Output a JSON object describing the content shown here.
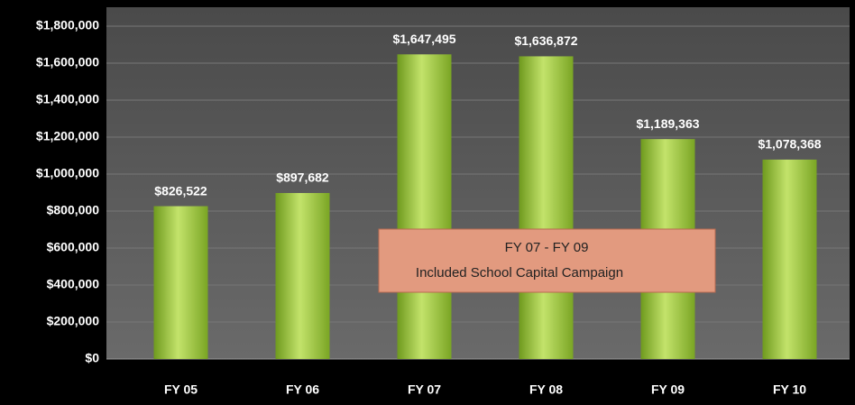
{
  "chart_data": {
    "type": "bar",
    "categories": [
      "FY 05",
      "FY 06",
      "FY 07",
      "FY 08",
      "FY 09",
      "FY 10"
    ],
    "values": [
      826522,
      897682,
      1647495,
      1636872,
      1189363,
      1078368
    ],
    "value_labels": [
      "$826,522",
      "$897,682",
      "$1,647,495",
      "$1,636,872",
      "$1,189,363",
      "$1,078,368"
    ],
    "color": "#9ccc3c",
    "ylim": [
      0,
      1800000
    ],
    "yticks": [
      {
        "value": 0,
        "label": "$0"
      },
      {
        "value": 200000,
        "label": "$200,000"
      },
      {
        "value": 400000,
        "label": "$400,000"
      },
      {
        "value": 600000,
        "label": "$600,000"
      },
      {
        "value": 800000,
        "label": "$800,000"
      },
      {
        "value": 1000000,
        "label": "$1,000,000"
      },
      {
        "value": 1200000,
        "label": "$1,200,000"
      },
      {
        "value": 1400000,
        "label": "$1,400,000"
      },
      {
        "value": 1600000,
        "label": "$1,600,000"
      },
      {
        "value": 1800000,
        "label": "$1,800,000"
      }
    ],
    "grid": true,
    "annotations": [
      "FY 07 - FY 09",
      "Included School Capital Campaign"
    ]
  }
}
